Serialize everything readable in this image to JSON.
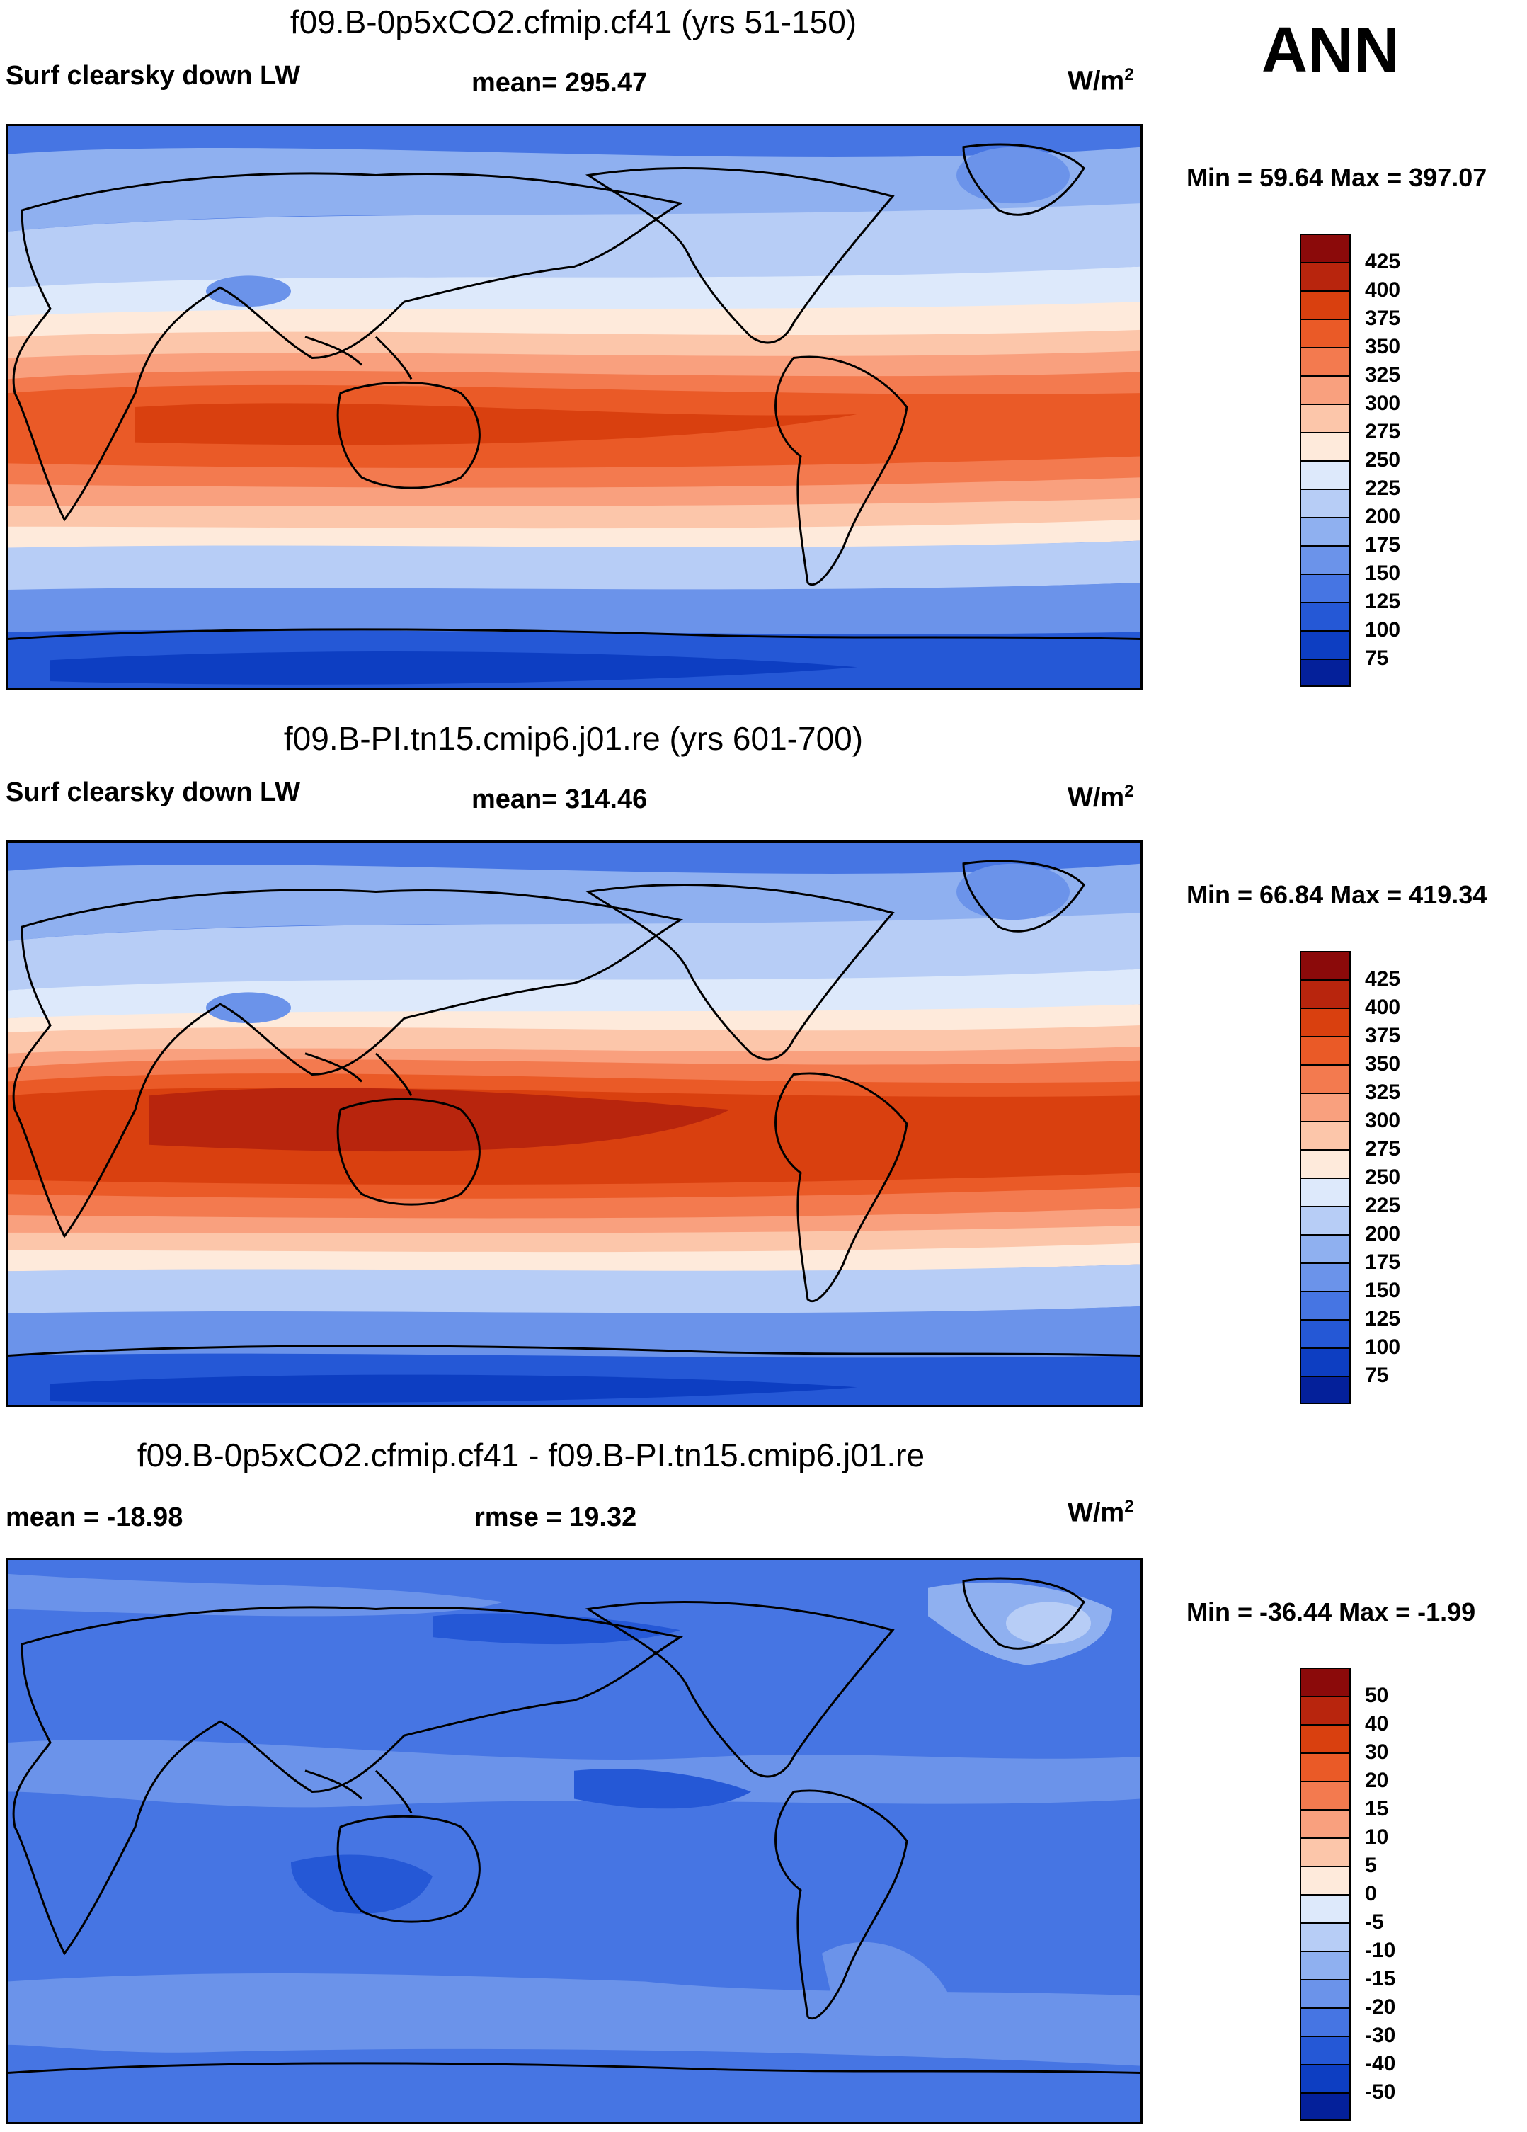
{
  "season": "ANN",
  "coastline_color": "#000000",
  "panels": [
    {
      "title": "f09.B-0p5xCO2.cfmip.cf41 (yrs 51-150)",
      "left_label": "Surf clearsky down LW",
      "center_label": "mean= 295.47",
      "units": "W/m",
      "units_sup": "2",
      "minmax": "Min =  59.64 Max = 397.07",
      "colorbar": {
        "colors": [
          "#8b0a0a",
          "#b8250d",
          "#d9400f",
          "#ea5a27",
          "#f37a4f",
          "#f9a07e",
          "#fcc6aa",
          "#feeadb",
          "#dde9fb",
          "#b7cdf6",
          "#8fb0f0",
          "#6b93ea",
          "#4675e3",
          "#2558d6",
          "#0d3ec2",
          "#04209a"
        ],
        "ticks": [
          "425",
          "400",
          "375",
          "350",
          "325",
          "300",
          "275",
          "250",
          "225",
          "200",
          "175",
          "150",
          "125",
          "100",
          "75"
        ]
      }
    },
    {
      "title": "f09.B-PI.tn15.cmip6.j01.re (yrs 601-700)",
      "left_label": "Surf clearsky down LW",
      "center_label": "mean= 314.46",
      "units": "W/m",
      "units_sup": "2",
      "minmax": "Min =  66.84 Max = 419.34",
      "colorbar": {
        "colors": [
          "#8b0a0a",
          "#b8250d",
          "#d9400f",
          "#ea5a27",
          "#f37a4f",
          "#f9a07e",
          "#fcc6aa",
          "#feeadb",
          "#dde9fb",
          "#b7cdf6",
          "#8fb0f0",
          "#6b93ea",
          "#4675e3",
          "#2558d6",
          "#0d3ec2",
          "#04209a"
        ],
        "ticks": [
          "425",
          "400",
          "375",
          "350",
          "325",
          "300",
          "275",
          "250",
          "225",
          "200",
          "175",
          "150",
          "125",
          "100",
          "75"
        ]
      }
    },
    {
      "title": "f09.B-0p5xCO2.cfmip.cf41 - f09.B-PI.tn15.cmip6.j01.re",
      "left_label": "mean = -18.98",
      "center_label": "rmse =  19.32",
      "units": "W/m",
      "units_sup": "2",
      "minmax": "Min = -36.44 Max =  -1.99",
      "colorbar": {
        "colors": [
          "#8b0a0a",
          "#b8250d",
          "#d9400f",
          "#ea5a27",
          "#f37a4f",
          "#f9a07e",
          "#fcc6aa",
          "#feeadb",
          "#dde9fb",
          "#b7cdf6",
          "#8fb0f0",
          "#6b93ea",
          "#4675e3",
          "#2558d6",
          "#0d3ec2",
          "#04209a"
        ],
        "ticks": [
          "50",
          "40",
          "30",
          "20",
          "15",
          "10",
          "5",
          "0",
          "-5",
          "-10",
          "-15",
          "-20",
          "-30",
          "-40",
          "-50"
        ]
      }
    }
  ]
}
